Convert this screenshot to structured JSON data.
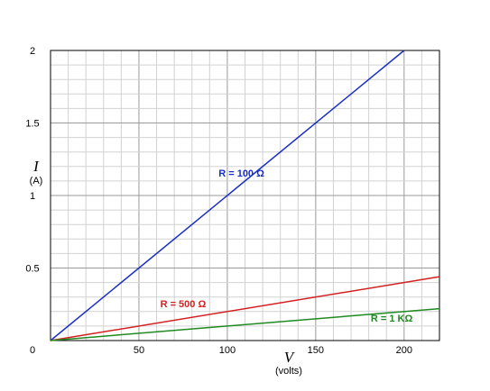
{
  "chart_data": {
    "type": "line",
    "xlabel": "V",
    "xunit": "(volts)",
    "ylabel": "I",
    "yunit": "(A)",
    "xlim": [
      0,
      220
    ],
    "ylim": [
      0,
      2
    ],
    "x_ticks": [
      {
        "value": 0,
        "label": "0"
      },
      {
        "value": 50,
        "label": "50"
      },
      {
        "value": 100,
        "label": "100"
      },
      {
        "value": 150,
        "label": "150"
      },
      {
        "value": 200,
        "label": "200"
      }
    ],
    "y_ticks": [
      {
        "value": 0.5,
        "label": "0.5"
      },
      {
        "value": 1,
        "label": "1"
      },
      {
        "value": 1.5,
        "label": "1.5"
      },
      {
        "value": 2,
        "label": "2"
      }
    ],
    "grid": true,
    "series": [
      {
        "name": "R = 100 Ω",
        "color": "#1a2fc4",
        "x": [
          0,
          200
        ],
        "y": [
          0,
          2
        ]
      },
      {
        "name": "R = 500 Ω",
        "color": "#d42020",
        "x": [
          0,
          220
        ],
        "y": [
          0,
          0.44
        ]
      },
      {
        "name": "R = 1 KΩ",
        "color": "#1f8a1f",
        "x": [
          0,
          220
        ],
        "y": [
          0,
          0.22
        ]
      }
    ],
    "annotations": [
      {
        "series": 0,
        "text": "R = 100 Ω",
        "at": [
          108,
          1.13
        ]
      },
      {
        "series": 1,
        "text": "R = 500 Ω",
        "at": [
          75,
          0.23
        ]
      },
      {
        "series": 2,
        "text": "R = 1 KΩ",
        "at": [
          193,
          0.13
        ]
      }
    ]
  }
}
